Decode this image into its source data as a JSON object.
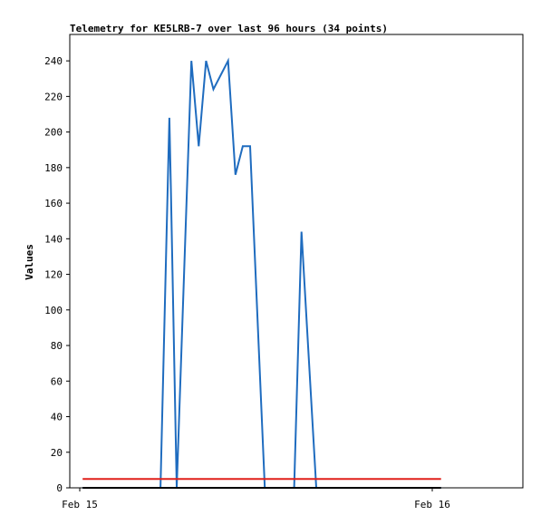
{
  "chart_data": {
    "type": "line",
    "title": "Telemetry for KE5LRB-7 over last 96 hours (34 points)",
    "xlabel": "",
    "ylabel": "Values",
    "ylim": [
      0,
      255
    ],
    "y_ticks": [
      0,
      20,
      40,
      60,
      80,
      100,
      120,
      140,
      160,
      180,
      200,
      220,
      240
    ],
    "x_ticks": [
      {
        "label": "Feb 15",
        "x": 0
      },
      {
        "label": "Feb 16",
        "x": 24
      }
    ],
    "xlim": [
      0,
      29.5
    ],
    "grid": false,
    "series": [
      {
        "color": "#1f6cbf",
        "points": [
          [
            0.2,
            0
          ],
          [
            5.5,
            0
          ],
          [
            6.1,
            208
          ],
          [
            6.2,
            170
          ],
          [
            6.6,
            0
          ],
          [
            7.6,
            240
          ],
          [
            8.1,
            192
          ],
          [
            8.6,
            240
          ],
          [
            9.1,
            224
          ],
          [
            10.1,
            240
          ],
          [
            10.6,
            176
          ],
          [
            11.1,
            192
          ],
          [
            11.6,
            192
          ],
          [
            12.6,
            0
          ],
          [
            14.6,
            0
          ],
          [
            15.1,
            144
          ],
          [
            16.1,
            0
          ],
          [
            24.6,
            0
          ]
        ]
      },
      {
        "color": "#e0201a",
        "points": [
          [
            0.2,
            5
          ],
          [
            24.6,
            5
          ]
        ]
      },
      {
        "color": "#000000",
        "points": [
          [
            0.2,
            0
          ],
          [
            24.6,
            0
          ]
        ]
      }
    ]
  }
}
